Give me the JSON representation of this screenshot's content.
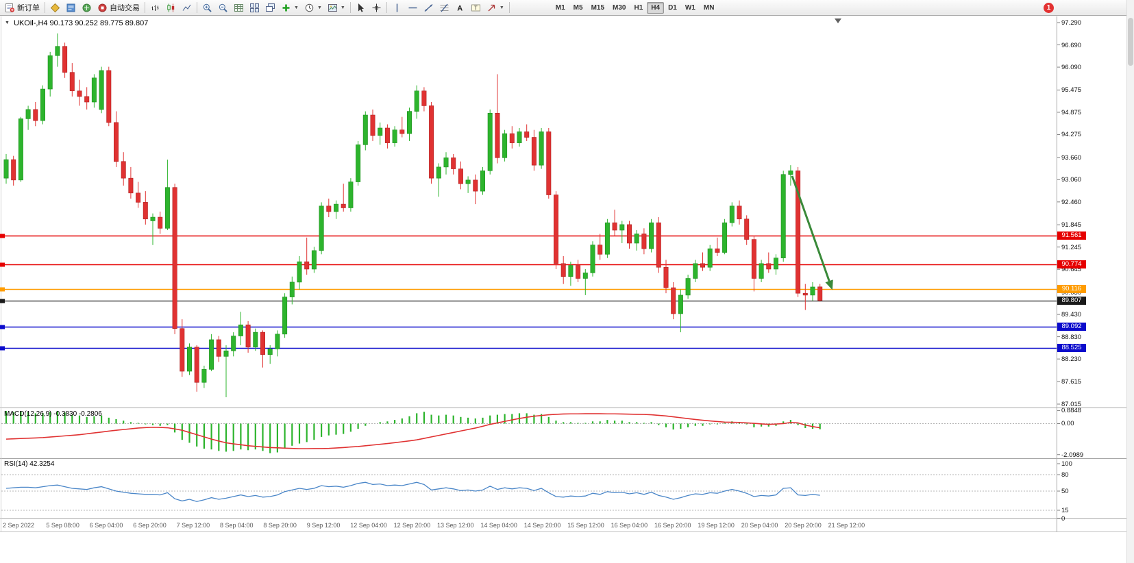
{
  "toolbar": {
    "new_order_label": "新订单",
    "auto_trading_label": "自动交易",
    "timeframes": [
      "M1",
      "M5",
      "M15",
      "M30",
      "H1",
      "H4",
      "D1",
      "W1",
      "MN"
    ],
    "active_timeframe": "H4",
    "notification_count": "1",
    "icon_names": [
      "new-order-icon",
      "market-watch-icon",
      "data-window-icon",
      "navigator-icon",
      "autotrading-icon",
      "bar-chart-icon",
      "candlestick-chart-icon",
      "line-chart-icon",
      "zoom-in-icon",
      "zoom-out-icon",
      "grid-icon",
      "tile-windows-icon",
      "cascade-windows-icon",
      "indicators-icon",
      "periods-icon",
      "templates-icon",
      "cursor-icon",
      "crosshair-icon",
      "vertical-line-icon",
      "horizontal-line-icon",
      "trendline-icon",
      "fibonacci-icon",
      "text-icon",
      "text-label-icon",
      "arrows-icon",
      "notification-badge"
    ]
  },
  "chart": {
    "title": "UKOil-,H4  90.173 90.252 89.775 89.807",
    "price_axis": [
      "97.290",
      "96.690",
      "96.090",
      "95.475",
      "94.875",
      "94.275",
      "93.660",
      "93.060",
      "92.460",
      "91.845",
      "91.245",
      "90.645",
      "90.030",
      "89.430",
      "88.830",
      "88.230",
      "87.615",
      "87.015"
    ],
    "hlines": [
      {
        "price": "91.561",
        "color": "#e60000",
        "width": 1.6
      },
      {
        "price": "90.774",
        "color": "#e60000",
        "width": 1.6
      },
      {
        "price": "90.116",
        "color": "#ff9c00",
        "width": 1.6
      },
      {
        "price": "89.807",
        "color": "#1a1a1a",
        "width": 1.2
      },
      {
        "price": "89.092",
        "color": "#0b0bcc",
        "width": 1.6
      },
      {
        "price": "88.525",
        "color": "#0b0bcc",
        "width": 1.6
      }
    ],
    "time_axis": [
      "2 Sep 2022",
      "5 Sep 08:00",
      "6 Sep 04:00",
      "6 Sep 20:00",
      "7 Sep 12:00",
      "8 Sep 04:00",
      "8 Sep 20:00",
      "9 Sep 12:00",
      "12 Sep 04:00",
      "12 Sep 20:00",
      "13 Sep 12:00",
      "14 Sep 04:00",
      "14 Sep 20:00",
      "15 Sep 12:00",
      "16 Sep 04:00",
      "16 Sep 20:00",
      "19 Sep 12:00",
      "20 Sep 04:00",
      "20 Sep 20:00",
      "21 Sep 12:00"
    ]
  },
  "macd": {
    "label": "MACD(12,26,9) -0.3830 -0.2806",
    "axis": [
      "0.8848",
      "0.00",
      "-2.0989"
    ]
  },
  "rsi": {
    "label": "RSI(14) 42.3254",
    "axis": [
      "100",
      "80",
      "50",
      "15",
      "0"
    ]
  },
  "chart_data": {
    "type": "candlestick",
    "symbol": "UKOil-",
    "timeframe": "H4",
    "ohlc_current": {
      "open": 90.173,
      "high": 90.252,
      "low": 89.775,
      "close": 89.807
    },
    "price_range": [
      87.015,
      97.29
    ],
    "macd_range": [
      -2.0989,
      0.8848
    ],
    "rsi_range": [
      0,
      100
    ],
    "rsi_current": 42.3254,
    "macd_current": -0.383,
    "macd_signal_current": -0.2806,
    "colors": {
      "up": "#2db42d",
      "up_border": "#1f8f1f",
      "down": "#e03232",
      "down_border": "#b02020",
      "macd_bar": "#2db42d",
      "macd_signal": "#e03232",
      "rsi_line": "#4a86c8"
    },
    "arrow": {
      "color": "#3a8a3a",
      "from": {
        "index": 107.2,
        "price": 93.16
      },
      "to": {
        "index": 112.6,
        "price": 90.14
      }
    },
    "candles": [
      [
        93.1,
        93.75,
        92.95,
        93.6
      ],
      [
        93.6,
        93.7,
        92.9,
        93.05
      ],
      [
        93.05,
        94.75,
        93.0,
        94.7
      ],
      [
        94.7,
        95.05,
        94.4,
        94.95
      ],
      [
        94.95,
        95.15,
        94.5,
        94.65
      ],
      [
        94.65,
        95.6,
        94.55,
        95.5
      ],
      [
        95.5,
        96.5,
        95.3,
        96.4
      ],
      [
        96.4,
        97.0,
        96.1,
        96.65
      ],
      [
        96.65,
        96.75,
        95.8,
        95.95
      ],
      [
        95.95,
        96.2,
        95.3,
        95.45
      ],
      [
        95.45,
        95.75,
        95.05,
        95.3
      ],
      [
        95.3,
        95.55,
        94.95,
        95.15
      ],
      [
        95.15,
        95.9,
        95.0,
        95.8
      ],
      [
        94.95,
        96.1,
        94.85,
        96.0
      ],
      [
        96.0,
        96.1,
        94.5,
        94.6
      ],
      [
        94.6,
        94.9,
        93.4,
        93.55
      ],
      [
        93.55,
        93.8,
        92.9,
        93.1
      ],
      [
        93.1,
        93.4,
        92.55,
        92.7
      ],
      [
        92.7,
        93.0,
        92.3,
        92.45
      ],
      [
        92.45,
        92.75,
        91.85,
        92.0
      ],
      [
        91.95,
        92.15,
        91.3,
        92.05
      ],
      [
        92.05,
        92.2,
        91.6,
        91.75
      ],
      [
        91.75,
        93.6,
        91.7,
        92.85
      ],
      [
        92.85,
        92.95,
        88.9,
        89.05
      ],
      [
        89.05,
        89.3,
        87.75,
        87.9
      ],
      [
        87.9,
        88.65,
        87.8,
        88.55
      ],
      [
        88.55,
        88.6,
        87.35,
        87.6
      ],
      [
        87.6,
        88.05,
        87.45,
        87.95
      ],
      [
        87.95,
        88.9,
        87.9,
        88.75
      ],
      [
        88.75,
        88.85,
        88.15,
        88.3
      ],
      [
        88.3,
        88.6,
        87.2,
        88.45
      ],
      [
        88.45,
        88.95,
        88.3,
        88.85
      ],
      [
        88.85,
        89.5,
        88.6,
        89.15
      ],
      [
        89.15,
        89.25,
        88.4,
        88.55
      ],
      [
        88.55,
        89.05,
        88.45,
        88.95
      ],
      [
        88.95,
        89.0,
        88.0,
        88.35
      ],
      [
        88.35,
        88.6,
        88.1,
        88.5
      ],
      [
        88.5,
        89.0,
        88.3,
        88.9
      ],
      [
        88.9,
        90.0,
        88.8,
        89.9
      ],
      [
        89.9,
        90.45,
        89.7,
        90.3
      ],
      [
        90.3,
        91.0,
        90.1,
        90.85
      ],
      [
        90.85,
        91.5,
        90.5,
        90.65
      ],
      [
        90.65,
        91.25,
        90.55,
        91.15
      ],
      [
        91.15,
        92.45,
        91.05,
        92.35
      ],
      [
        92.35,
        92.55,
        92.05,
        92.2
      ],
      [
        92.2,
        92.5,
        92.0,
        92.4
      ],
      [
        92.4,
        92.95,
        92.2,
        92.3
      ],
      [
        92.3,
        93.1,
        92.2,
        93.0
      ],
      [
        93.0,
        94.1,
        92.9,
        94.0
      ],
      [
        94.0,
        94.9,
        93.85,
        94.8
      ],
      [
        94.8,
        94.95,
        94.1,
        94.25
      ],
      [
        94.25,
        94.6,
        94.0,
        94.45
      ],
      [
        94.45,
        94.55,
        93.9,
        94.05
      ],
      [
        94.05,
        94.5,
        93.95,
        94.4
      ],
      [
        94.4,
        94.75,
        94.2,
        94.3
      ],
      [
        94.3,
        95.0,
        94.1,
        94.9
      ],
      [
        94.9,
        95.6,
        94.7,
        95.45
      ],
      [
        95.45,
        95.55,
        94.9,
        95.05
      ],
      [
        95.05,
        95.15,
        92.95,
        93.1
      ],
      [
        93.1,
        93.5,
        92.6,
        93.4
      ],
      [
        93.4,
        93.8,
        93.2,
        93.65
      ],
      [
        93.65,
        93.75,
        93.2,
        93.35
      ],
      [
        93.35,
        93.55,
        92.8,
        92.95
      ],
      [
        92.95,
        93.15,
        92.7,
        93.05
      ],
      [
        93.05,
        93.2,
        92.4,
        92.75
      ],
      [
        92.75,
        93.4,
        92.65,
        93.3
      ],
      [
        93.3,
        94.95,
        93.2,
        94.85
      ],
      [
        94.85,
        95.9,
        93.5,
        93.65
      ],
      [
        93.65,
        94.4,
        93.55,
        94.3
      ],
      [
        94.3,
        94.5,
        93.9,
        94.05
      ],
      [
        94.05,
        94.45,
        93.95,
        94.35
      ],
      [
        94.35,
        94.55,
        94.1,
        94.2
      ],
      [
        94.2,
        94.4,
        93.3,
        93.45
      ],
      [
        93.45,
        94.45,
        93.35,
        94.35
      ],
      [
        94.35,
        94.45,
        92.55,
        92.65
      ],
      [
        92.65,
        92.75,
        90.65,
        90.8
      ],
      [
        90.8,
        91.0,
        90.25,
        90.45
      ],
      [
        90.45,
        90.85,
        90.2,
        90.75
      ],
      [
        90.75,
        90.9,
        90.3,
        90.4
      ],
      [
        90.4,
        90.65,
        89.95,
        90.55
      ],
      [
        90.55,
        91.4,
        90.45,
        91.3
      ],
      [
        91.3,
        91.6,
        90.9,
        91.05
      ],
      [
        91.05,
        92.0,
        90.95,
        91.9
      ],
      [
        91.9,
        92.25,
        91.55,
        91.7
      ],
      [
        91.7,
        91.95,
        91.35,
        91.85
      ],
      [
        91.85,
        91.95,
        91.2,
        91.35
      ],
      [
        91.35,
        91.7,
        91.15,
        91.6
      ],
      [
        91.6,
        91.75,
        91.05,
        91.2
      ],
      [
        91.2,
        92.0,
        91.1,
        91.9
      ],
      [
        91.9,
        92.05,
        90.55,
        90.7
      ],
      [
        90.7,
        90.9,
        90.0,
        90.15
      ],
      [
        90.15,
        90.3,
        89.3,
        89.45
      ],
      [
        89.45,
        90.1,
        88.95,
        89.95
      ],
      [
        89.95,
        90.5,
        89.85,
        90.4
      ],
      [
        90.4,
        90.9,
        90.3,
        90.8
      ],
      [
        90.8,
        91.1,
        90.6,
        90.7
      ],
      [
        90.7,
        91.3,
        90.6,
        91.2
      ],
      [
        91.2,
        91.5,
        91.0,
        91.1
      ],
      [
        91.1,
        92.0,
        91.05,
        91.9
      ],
      [
        91.9,
        92.45,
        91.8,
        92.35
      ],
      [
        92.35,
        92.5,
        91.85,
        92.0
      ],
      [
        92.0,
        92.1,
        91.3,
        91.45
      ],
      [
        91.45,
        91.55,
        90.05,
        90.4
      ],
      [
        90.4,
        90.9,
        90.3,
        90.8
      ],
      [
        90.8,
        91.1,
        90.55,
        90.65
      ],
      [
        90.65,
        91.05,
        90.5,
        90.95
      ],
      [
        90.95,
        93.3,
        90.85,
        93.2
      ],
      [
        93.2,
        93.45,
        92.9,
        93.3
      ],
      [
        93.3,
        93.4,
        89.9,
        90.0
      ],
      [
        90.0,
        90.25,
        89.55,
        89.95
      ],
      [
        89.95,
        90.3,
        89.8,
        90.17
      ],
      [
        90.173,
        90.252,
        89.775,
        89.807
      ]
    ],
    "macd": {
      "histogram": [
        0.85,
        0.8,
        0.82,
        0.78,
        0.7,
        0.72,
        0.8,
        0.85,
        0.75,
        0.6,
        0.55,
        0.45,
        0.5,
        0.55,
        0.4,
        0.3,
        0.2,
        0.1,
        0.05,
        -0.05,
        -0.1,
        -0.15,
        -0.1,
        -0.6,
        -1.1,
        -1.3,
        -1.55,
        -1.7,
        -1.75,
        -1.85,
        -1.9,
        -1.85,
        -1.75,
        -1.8,
        -1.75,
        -1.85,
        -2.0,
        -1.95,
        -1.7,
        -1.5,
        -1.35,
        -1.25,
        -1.1,
        -0.9,
        -0.8,
        -0.75,
        -0.7,
        -0.55,
        -0.35,
        -0.15,
        0.0,
        0.1,
        0.15,
        0.25,
        0.35,
        0.5,
        0.7,
        0.8,
        0.6,
        0.55,
        0.6,
        0.55,
        0.45,
        0.4,
        0.35,
        0.4,
        0.55,
        0.6,
        0.65,
        0.65,
        0.7,
        0.7,
        0.6,
        0.65,
        0.45,
        0.2,
        0.1,
        0.1,
        0.05,
        0.05,
        0.15,
        0.15,
        0.25,
        0.2,
        0.2,
        0.1,
        0.1,
        0.05,
        0.1,
        -0.1,
        -0.25,
        -0.4,
        -0.35,
        -0.25,
        -0.15,
        -0.15,
        -0.05,
        -0.05,
        0.05,
        0.15,
        0.1,
        -0.05,
        -0.25,
        -0.2,
        -0.2,
        -0.15,
        0.15,
        0.25,
        -0.1,
        -0.3,
        -0.35,
        -0.383
      ],
      "signal": [
        -1.05,
        -1.03,
        -1.01,
        -0.99,
        -0.97,
        -0.95,
        -0.91,
        -0.87,
        -0.83,
        -0.79,
        -0.75,
        -0.69,
        -0.63,
        -0.57,
        -0.51,
        -0.45,
        -0.4,
        -0.35,
        -0.3,
        -0.27,
        -0.25,
        -0.26,
        -0.28,
        -0.36,
        -0.45,
        -0.6,
        -0.75,
        -0.9,
        -1.05,
        -1.18,
        -1.3,
        -1.37,
        -1.43,
        -1.5,
        -1.54,
        -1.58,
        -1.62,
        -1.64,
        -1.66,
        -1.68,
        -1.7,
        -1.7,
        -1.69,
        -1.69,
        -1.68,
        -1.65,
        -1.62,
        -1.58,
        -1.55,
        -1.5,
        -1.45,
        -1.4,
        -1.35,
        -1.29,
        -1.23,
        -1.17,
        -1.1,
        -1.0,
        -0.9,
        -0.8,
        -0.7,
        -0.6,
        -0.5,
        -0.4,
        -0.3,
        -0.18,
        -0.05,
        0.05,
        0.15,
        0.25,
        0.35,
        0.43,
        0.5,
        0.55,
        0.6,
        0.63,
        0.65,
        0.66,
        0.66,
        0.67,
        0.67,
        0.67,
        0.66,
        0.66,
        0.65,
        0.64,
        0.63,
        0.62,
        0.6,
        0.56,
        0.52,
        0.46,
        0.4,
        0.34,
        0.28,
        0.23,
        0.18,
        0.14,
        0.1,
        0.09,
        0.08,
        0.05,
        0.02,
        -0.02,
        -0.05,
        -0.03,
        0.0,
        0.08,
        0.05,
        -0.1,
        -0.2,
        -0.2806
      ]
    },
    "rsi_values": [
      55,
      56,
      57,
      57,
      56,
      58,
      60,
      61,
      58,
      55,
      54,
      53,
      56,
      58,
      54,
      50,
      48,
      46,
      45,
      44,
      44,
      43,
      47,
      36,
      32,
      35,
      31,
      34,
      38,
      35,
      37,
      40,
      43,
      40,
      42,
      39,
      40,
      43,
      49,
      52,
      55,
      53,
      55,
      60,
      58,
      59,
      57,
      60,
      64,
      66,
      62,
      63,
      60,
      61,
      60,
      63,
      66,
      62,
      52,
      54,
      56,
      54,
      51,
      52,
      50,
      52,
      59,
      53,
      56,
      54,
      56,
      55,
      51,
      55,
      47,
      40,
      39,
      41,
      40,
      41,
      46,
      44,
      49,
      47,
      48,
      45,
      47,
      44,
      48,
      42,
      39,
      35,
      38,
      42,
      45,
      44,
      47,
      46,
      50,
      53,
      50,
      46,
      40,
      42,
      41,
      43,
      55,
      56,
      43,
      42,
      44,
      42.3
    ]
  }
}
